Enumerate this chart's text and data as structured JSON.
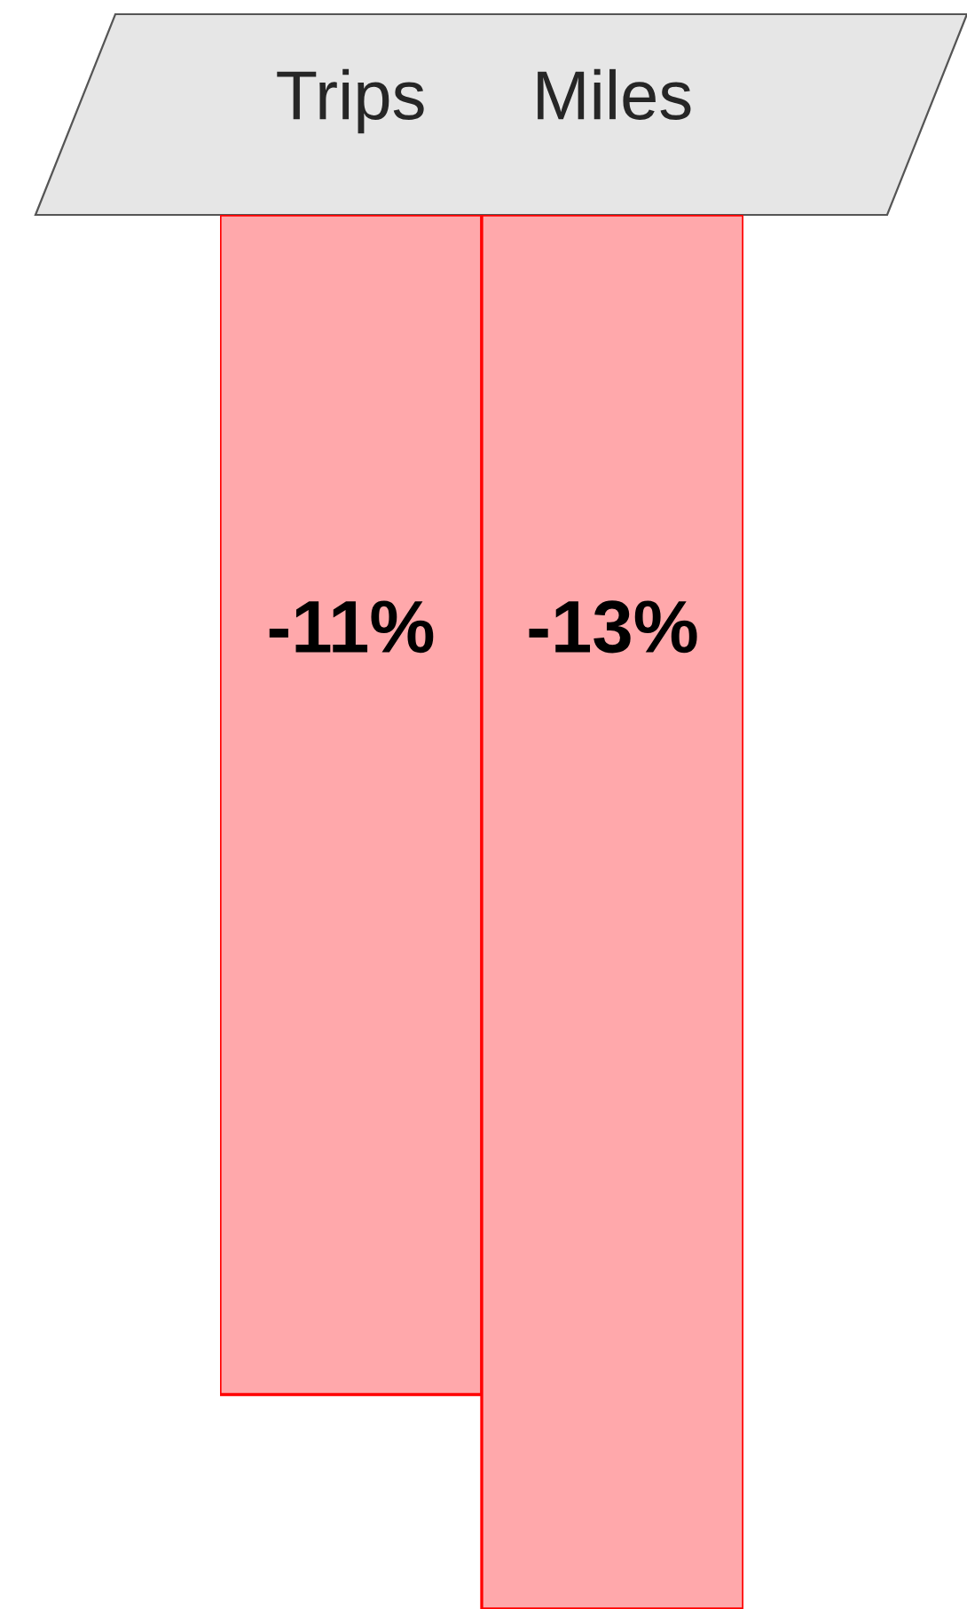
{
  "chart_data": {
    "type": "bar",
    "categories": [
      "Trips",
      "Miles"
    ],
    "values": [
      -11,
      -13
    ],
    "value_labels": [
      "-11%",
      "-13%"
    ],
    "color": "#ffa8ab",
    "ylim": [
      -13,
      0
    ],
    "grid": false,
    "legend": false
  }
}
